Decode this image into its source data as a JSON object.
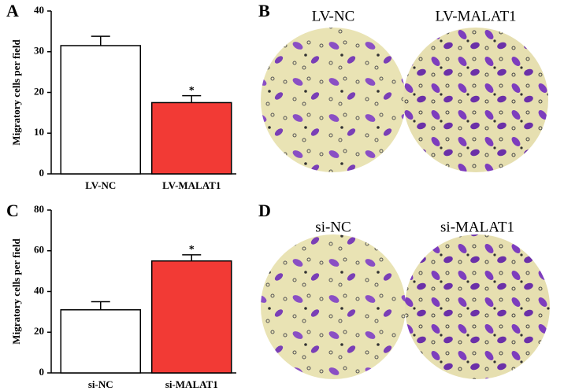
{
  "panel_labels": [
    "A",
    "B",
    "C",
    "D"
  ],
  "image_labels": {
    "B": [
      "LV-NC",
      "LV-MALAT1"
    ],
    "D": [
      "si-NC",
      "si-MALAT1"
    ]
  },
  "chart_data": [
    {
      "type": "bar",
      "y_label": "Migratory cells per field",
      "categories": [
        "LV-NC",
        "LV-MALAT1"
      ],
      "values": [
        31.5,
        17.5
      ],
      "errors": [
        2.3,
        1.7
      ],
      "annotations": [
        null,
        "*"
      ],
      "colors": [
        "#ffffff",
        "#f23a35"
      ],
      "ylim": [
        0,
        40
      ],
      "yticks": [
        0,
        10,
        20,
        30,
        40
      ]
    },
    {
      "type": "bar",
      "y_label": "Migratory cells per field",
      "categories": [
        "si-NC",
        "si-MALAT1"
      ],
      "values": [
        31,
        55
      ],
      "errors": [
        4,
        3
      ],
      "annotations": [
        null,
        "*"
      ],
      "colors": [
        "#ffffff",
        "#f23a35"
      ],
      "ylim": [
        0,
        80
      ],
      "yticks": [
        0,
        20,
        40,
        60,
        80
      ]
    }
  ]
}
